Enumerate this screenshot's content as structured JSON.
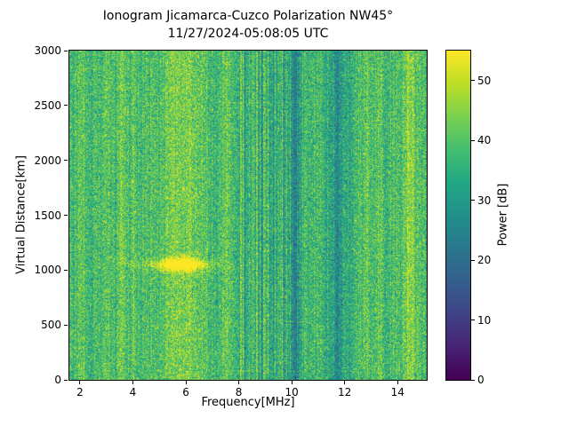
{
  "chart_data": {
    "type": "heatmap",
    "title": "Ionogram Jicamarca-Cuzco Polarization NW45°",
    "subtitle": "11/27/2024-05:08:05 UTC",
    "xlabel": "Frequency[MHz]",
    "ylabel": "Virtual Distance[km]",
    "xlim": [
      1.6,
      15.1
    ],
    "ylim": [
      0,
      3000
    ],
    "xticks": [
      2,
      4,
      6,
      8,
      10,
      12,
      14
    ],
    "yticks": [
      0,
      500,
      1000,
      1500,
      2000,
      2500,
      3000
    ],
    "grid": false,
    "legend": "colorbar-right",
    "colorbar": {
      "label": "Power [dB]",
      "ticks": [
        0,
        10,
        20,
        30,
        40,
        50
      ],
      "range": [
        0,
        55
      ],
      "colormap": "viridis",
      "colormap_stops": [
        [
          0.0,
          "#440154"
        ],
        [
          0.1,
          "#482475"
        ],
        [
          0.2,
          "#414487"
        ],
        [
          0.3,
          "#355f8d"
        ],
        [
          0.4,
          "#2a788e"
        ],
        [
          0.5,
          "#21918c"
        ],
        [
          0.6,
          "#22a884"
        ],
        [
          0.7,
          "#44bf70"
        ],
        [
          0.8,
          "#7ad151"
        ],
        [
          0.9,
          "#bddf26"
        ],
        [
          1.0,
          "#fde725"
        ]
      ]
    },
    "background": {
      "mean_db": 38,
      "pixel_noise_sd_db": 6,
      "column_noise_sd_db": 1.8,
      "stripe_column_noise_sd_db": 4.5
    },
    "features": {
      "bright_columns": [
        {
          "f_mhz": 2.05,
          "width_mhz": 0.1,
          "amp_db": 3
        },
        {
          "f_mhz": 3.6,
          "width_mhz": 0.1,
          "amp_db": 5
        },
        {
          "f_mhz": 4.05,
          "width_mhz": 0.06,
          "amp_db": 3
        },
        {
          "f_mhz": 5.85,
          "width_mhz": 0.5,
          "amp_db": 6
        },
        {
          "f_mhz": 7.55,
          "width_mhz": 0.08,
          "amp_db": 4
        },
        {
          "f_mhz": 10.5,
          "width_mhz": 0.06,
          "amp_db": 3
        },
        {
          "f_mhz": 12.85,
          "width_mhz": 0.12,
          "amp_db": 4
        },
        {
          "f_mhz": 13.35,
          "width_mhz": 0.08,
          "amp_db": 3
        },
        {
          "f_mhz": 14.45,
          "width_mhz": 0.15,
          "amp_db": 8
        }
      ],
      "dark_columns": [
        {
          "f_mhz": 8.3,
          "width_mhz": 0.07,
          "amp_db": -5
        },
        {
          "f_mhz": 9.3,
          "width_mhz": 0.8,
          "amp_db": -3
        },
        {
          "f_mhz": 10.15,
          "width_mhz": 0.12,
          "amp_db": -9
        },
        {
          "f_mhz": 11.75,
          "width_mhz": 0.25,
          "amp_db": -9
        },
        {
          "f_mhz": 11.7,
          "width_mhz": 0.06,
          "amp_db": -5
        },
        {
          "f_mhz": 12.2,
          "width_mhz": 0.06,
          "amp_db": -4
        },
        {
          "f_mhz": 13.6,
          "width_mhz": 0.08,
          "amp_db": -3
        }
      ],
      "echo_blob": {
        "f_center_mhz": 5.85,
        "f_sd_mhz": 0.5,
        "alt_center_km": 1050,
        "alt_sd_km": 45,
        "peak_db": 25
      },
      "echo_streak": {
        "f_center_mhz": 5.6,
        "f_sd_mhz": 1.1,
        "alt_center_km": 1050,
        "alt_sd_km": 28,
        "peak_db": 10
      },
      "striped_region": {
        "f_min": 8.0,
        "f_max": 10.35
      },
      "horizontal_lines": {
        "f_min": 7.6,
        "f_max": 10.35,
        "row_probability": 0.055,
        "amp_db": 7
      },
      "speckle_dropouts": {
        "probability": 0.004,
        "depth_db": 20
      }
    }
  }
}
